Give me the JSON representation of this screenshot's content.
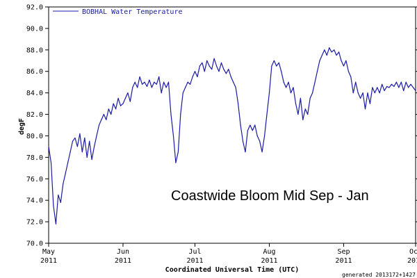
{
  "chart_data": {
    "type": "line",
    "series": [
      {
        "name": "BOBHAL Water Temperature",
        "color": "#1a1aa6",
        "points": [
          [
            "2011-05-01",
            79.0
          ],
          [
            "2011-05-02",
            77.5
          ],
          [
            "2011-05-03",
            73.5
          ],
          [
            "2011-05-04",
            71.8
          ],
          [
            "2011-05-05",
            74.5
          ],
          [
            "2011-05-06",
            73.8
          ],
          [
            "2011-05-07",
            75.5
          ],
          [
            "2011-05-08",
            76.5
          ],
          [
            "2011-05-09",
            77.5
          ],
          [
            "2011-05-10",
            78.5
          ],
          [
            "2011-05-11",
            79.5
          ],
          [
            "2011-05-12",
            79.8
          ],
          [
            "2011-05-13",
            79.0
          ],
          [
            "2011-05-14",
            80.2
          ],
          [
            "2011-05-15",
            78.5
          ],
          [
            "2011-05-16",
            79.8
          ],
          [
            "2011-05-17",
            78.0
          ],
          [
            "2011-05-18",
            79.5
          ],
          [
            "2011-05-19",
            77.8
          ],
          [
            "2011-05-20",
            79.0
          ],
          [
            "2011-05-21",
            80.0
          ],
          [
            "2011-05-22",
            81.0
          ],
          [
            "2011-05-23",
            81.5
          ],
          [
            "2011-05-24",
            82.0
          ],
          [
            "2011-05-25",
            81.5
          ],
          [
            "2011-05-26",
            82.5
          ],
          [
            "2011-05-27",
            82.0
          ],
          [
            "2011-05-28",
            83.0
          ],
          [
            "2011-05-29",
            82.5
          ],
          [
            "2011-05-30",
            83.5
          ],
          [
            "2011-05-31",
            82.8
          ],
          [
            "2011-06-01",
            83.0
          ],
          [
            "2011-06-02",
            83.5
          ],
          [
            "2011-06-03",
            84.0
          ],
          [
            "2011-06-04",
            83.2
          ],
          [
            "2011-06-05",
            84.5
          ],
          [
            "2011-06-06",
            85.0
          ],
          [
            "2011-06-07",
            84.5
          ],
          [
            "2011-06-08",
            85.5
          ],
          [
            "2011-06-09",
            84.8
          ],
          [
            "2011-06-10",
            85.0
          ],
          [
            "2011-06-11",
            84.6
          ],
          [
            "2011-06-12",
            85.2
          ],
          [
            "2011-06-13",
            84.5
          ],
          [
            "2011-06-14",
            85.0
          ],
          [
            "2011-06-15",
            84.8
          ],
          [
            "2011-06-16",
            85.5
          ],
          [
            "2011-06-17",
            84.0
          ],
          [
            "2011-06-18",
            85.0
          ],
          [
            "2011-06-19",
            84.5
          ],
          [
            "2011-06-20",
            85.0
          ],
          [
            "2011-06-21",
            82.0
          ],
          [
            "2011-06-22",
            80.0
          ],
          [
            "2011-06-23",
            77.5
          ],
          [
            "2011-06-24",
            78.5
          ],
          [
            "2011-06-25",
            82.0
          ],
          [
            "2011-06-26",
            84.0
          ],
          [
            "2011-06-27",
            84.5
          ],
          [
            "2011-06-28",
            85.0
          ],
          [
            "2011-06-29",
            84.8
          ],
          [
            "2011-06-30",
            85.5
          ],
          [
            "2011-07-01",
            86.0
          ],
          [
            "2011-07-02",
            85.5
          ],
          [
            "2011-07-03",
            86.5
          ],
          [
            "2011-07-04",
            86.8
          ],
          [
            "2011-07-05",
            86.0
          ],
          [
            "2011-07-06",
            87.0
          ],
          [
            "2011-07-07",
            86.5
          ],
          [
            "2011-07-08",
            86.2
          ],
          [
            "2011-07-09",
            87.2
          ],
          [
            "2011-07-10",
            86.5
          ],
          [
            "2011-07-11",
            86.0
          ],
          [
            "2011-07-12",
            86.8
          ],
          [
            "2011-07-13",
            86.2
          ],
          [
            "2011-07-14",
            85.8
          ],
          [
            "2011-07-15",
            86.2
          ],
          [
            "2011-07-16",
            85.5
          ],
          [
            "2011-07-17",
            85.0
          ],
          [
            "2011-07-18",
            84.5
          ],
          [
            "2011-07-19",
            83.0
          ],
          [
            "2011-07-20",
            81.0
          ],
          [
            "2011-07-21",
            79.5
          ],
          [
            "2011-07-22",
            78.5
          ],
          [
            "2011-07-23",
            80.5
          ],
          [
            "2011-07-24",
            81.0
          ],
          [
            "2011-07-25",
            80.5
          ],
          [
            "2011-07-26",
            81.0
          ],
          [
            "2011-07-27",
            80.0
          ],
          [
            "2011-07-28",
            79.5
          ],
          [
            "2011-07-29",
            78.5
          ],
          [
            "2011-07-30",
            80.0
          ],
          [
            "2011-07-31",
            82.0
          ],
          [
            "2011-08-01",
            84.0
          ],
          [
            "2011-08-02",
            86.5
          ],
          [
            "2011-08-03",
            87.0
          ],
          [
            "2011-08-04",
            86.5
          ],
          [
            "2011-08-05",
            86.8
          ],
          [
            "2011-08-06",
            86.0
          ],
          [
            "2011-08-07",
            85.0
          ],
          [
            "2011-08-08",
            84.5
          ],
          [
            "2011-08-09",
            85.0
          ],
          [
            "2011-08-10",
            84.0
          ],
          [
            "2011-08-11",
            84.5
          ],
          [
            "2011-08-12",
            83.0
          ],
          [
            "2011-08-13",
            82.0
          ],
          [
            "2011-08-14",
            83.5
          ],
          [
            "2011-08-15",
            81.5
          ],
          [
            "2011-08-16",
            82.5
          ],
          [
            "2011-08-17",
            82.0
          ],
          [
            "2011-08-18",
            83.5
          ],
          [
            "2011-08-19",
            84.0
          ],
          [
            "2011-08-20",
            85.0
          ],
          [
            "2011-08-21",
            86.0
          ],
          [
            "2011-08-22",
            87.0
          ],
          [
            "2011-08-23",
            87.5
          ],
          [
            "2011-08-24",
            88.0
          ],
          [
            "2011-08-25",
            87.5
          ],
          [
            "2011-08-26",
            88.2
          ],
          [
            "2011-08-27",
            87.8
          ],
          [
            "2011-08-28",
            88.0
          ],
          [
            "2011-08-29",
            87.5
          ],
          [
            "2011-08-30",
            87.8
          ],
          [
            "2011-08-31",
            87.0
          ],
          [
            "2011-09-01",
            86.5
          ],
          [
            "2011-09-02",
            87.0
          ],
          [
            "2011-09-03",
            86.0
          ],
          [
            "2011-09-04",
            85.5
          ],
          [
            "2011-09-05",
            84.0
          ],
          [
            "2011-09-06",
            85.0
          ],
          [
            "2011-09-07",
            84.0
          ],
          [
            "2011-09-08",
            83.5
          ],
          [
            "2011-09-09",
            84.0
          ],
          [
            "2011-09-10",
            82.5
          ],
          [
            "2011-09-11",
            84.0
          ],
          [
            "2011-09-12",
            83.0
          ],
          [
            "2011-09-13",
            84.5
          ],
          [
            "2011-09-14",
            84.0
          ],
          [
            "2011-09-15",
            84.5
          ],
          [
            "2011-09-16",
            84.0
          ],
          [
            "2011-09-17",
            84.8
          ],
          [
            "2011-09-18",
            84.2
          ],
          [
            "2011-09-19",
            84.6
          ],
          [
            "2011-09-20",
            84.5
          ],
          [
            "2011-09-21",
            84.8
          ],
          [
            "2011-09-22",
            84.6
          ],
          [
            "2011-09-23",
            85.0
          ],
          [
            "2011-09-24",
            84.5
          ],
          [
            "2011-09-25",
            85.0
          ],
          [
            "2011-09-26",
            84.2
          ],
          [
            "2011-09-27",
            85.0
          ],
          [
            "2011-09-28",
            84.5
          ],
          [
            "2011-09-29",
            84.8
          ],
          [
            "2011-09-30",
            84.5
          ],
          [
            "2011-10-01",
            84.2
          ]
        ]
      }
    ],
    "xlabel": "Coordinated Universal Time (UTC)",
    "ylabel": "degF",
    "xlim": [
      "2011-05-01",
      "2011-10-01"
    ],
    "ylim": [
      70.0,
      92.0
    ],
    "yticks": [
      "70.0",
      "72.0",
      "74.0",
      "76.0",
      "78.0",
      "80.0",
      "82.0",
      "84.0",
      "86.0",
      "88.0",
      "90.0",
      "92.0"
    ],
    "xticks": [
      {
        "date": "2011-05-01",
        "month": "May",
        "year": "2011"
      },
      {
        "date": "2011-06-01",
        "month": "Jun",
        "year": "2011"
      },
      {
        "date": "2011-07-01",
        "month": "Jul",
        "year": "2011"
      },
      {
        "date": "2011-08-01",
        "month": "Aug",
        "year": "2011"
      },
      {
        "date": "2011-09-01",
        "month": "Sep",
        "year": "2011"
      },
      {
        "date": "2011-10-01",
        "month": "Oct",
        "year": "2011"
      }
    ],
    "grid": false,
    "legend_position": "top-left",
    "annotation": "Coastwide Bloom Mid Sep - Jan",
    "footer": "generated 2013172+1427"
  }
}
